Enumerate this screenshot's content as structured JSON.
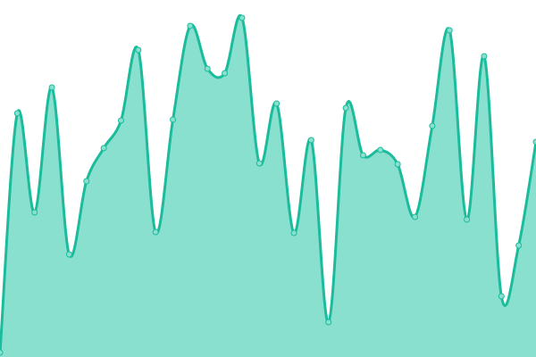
{
  "chart_data": {
    "type": "area",
    "title": "",
    "xlabel": "",
    "ylabel": "",
    "x": [
      0,
      1,
      2,
      3,
      4,
      5,
      6,
      7,
      8,
      9,
      10,
      11,
      12,
      13,
      14,
      15,
      16,
      17,
      18,
      19,
      20,
      21,
      22,
      23,
      24,
      25,
      26,
      27,
      28,
      29,
      30,
      31
    ],
    "values": [
      5,
      273,
      162,
      302,
      115,
      197,
      234,
      265,
      344,
      140,
      266,
      371,
      323,
      318,
      380,
      217,
      284,
      139,
      243,
      39,
      279,
      226,
      232,
      216,
      157,
      259,
      366,
      154,
      337,
      68,
      125,
      241
    ],
    "ylim": [
      0,
      400
    ],
    "grid": false,
    "axes_visible": false,
    "curve": "smooth",
    "colors": {
      "line": "#1abc9c",
      "fill": "#8ae0cf",
      "marker_fill": "#8ae0cf",
      "marker_stroke": "#1abc9c"
    }
  }
}
